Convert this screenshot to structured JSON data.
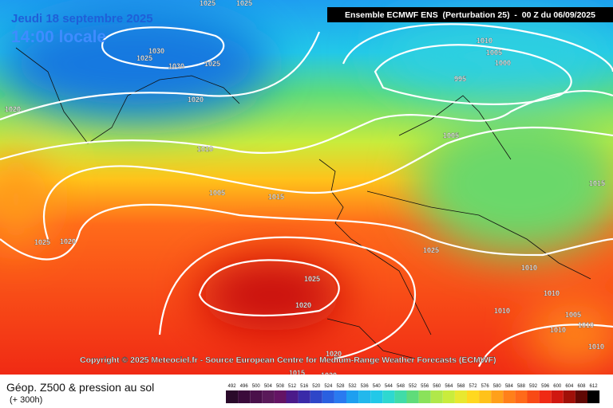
{
  "header": {
    "date": "Jeudi 18 septembre 2025",
    "time": "14:00 locale",
    "model": "Ensemble ECMWF ENS  (Perturbation 25)  -  00 Z du 06/09/2025"
  },
  "isobar_labels": [
    "1025",
    "1025",
    "1030",
    "1025",
    "1030",
    "1025",
    "1020",
    "1020",
    "1010",
    "1005",
    "1015",
    "1025",
    "1020",
    "1010",
    "1005",
    "1000",
    "995",
    "1005",
    "1015",
    "1025",
    "1010",
    "1025",
    "1020",
    "1010",
    "1010",
    "1005",
    "1010",
    "1010",
    "1010",
    "1020",
    "1015",
    "1020",
    "1005"
  ],
  "copyright": "Copyright © 2025 Meteociel.fr - Source European Centre for Medium-Range Weather Forecasts (ECMWF)",
  "footer": {
    "title": "Géop. Z500 & pression au sol",
    "subtitle": "(+ 300h)"
  },
  "legend": {
    "ticks": [
      492,
      496,
      500,
      504,
      508,
      512,
      516,
      520,
      524,
      528,
      532,
      536,
      540,
      544,
      548,
      552,
      556,
      560,
      564,
      568,
      572,
      576,
      580,
      584,
      588,
      592,
      596,
      600,
      604,
      608,
      612
    ]
  }
}
